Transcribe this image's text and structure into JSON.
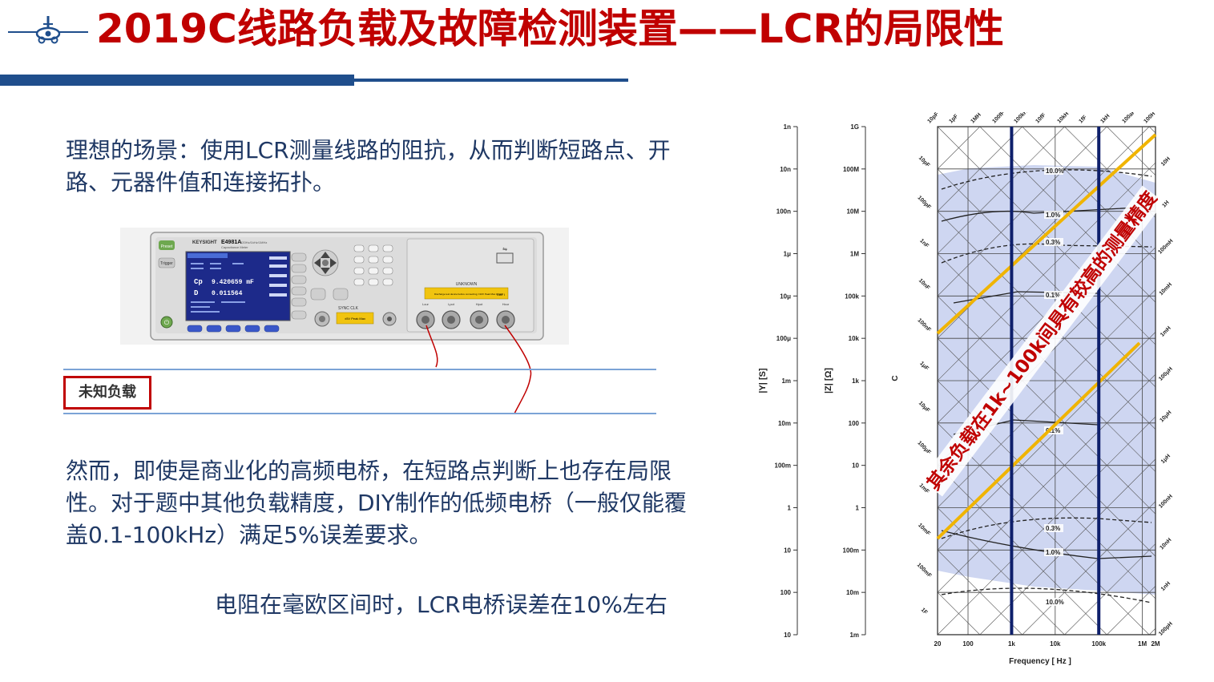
{
  "slide": {
    "title": "2019C线路负载及故障检测装置——LCR的局限性",
    "para1": "理想的场景：使用LCR测量线路的阻抗，从而判断短路点、开路、元器件值和连接拓扑。",
    "tag": "未知负载",
    "para2": "然而，即使是商业化的高频电桥，在短路点判断上也存在局限性。对于题中其他负载精度，DIY制作的低频电桥（一般仅能覆盖0.1-100kHz）满足5%误差要求。",
    "para3": "电阻在毫欧区间时，LCR电桥误差在10%左右"
  },
  "device": {
    "brand": "KEYSIGHT",
    "model": "E4981A",
    "model_sub": "120Hz/1kHz/1MHz",
    "model_sub2": "Capacitance Meter",
    "screen_cp_label": "Cp",
    "screen_cp_value": "9.420659 mF",
    "screen_d_label": "D",
    "screen_d_value": "0.011564",
    "sync_label": "SYNC CLK",
    "unknown_label": "UNKNOWN",
    "warning_text": "Discharge test device before connecting; ±10V Peak Max Output",
    "cat_label": "CAT I",
    "warning2": "±5V Peak Max",
    "port_labels": [
      "Lcur",
      "Lpot",
      "Hpot",
      "Hcur"
    ],
    "preset_label": "Preset",
    "trigger_label": "Trigger"
  },
  "chart_data": {
    "type": "line",
    "title": "",
    "xlabel": "Frequency [ Hz ]",
    "x_ticks": [
      "20",
      "100",
      "1k",
      "10k",
      "100k",
      "1M",
      "2M"
    ],
    "y_label_Y": "|Y| [S]",
    "y_label_Z": "|Z| [Ω]",
    "y_label_C": "C",
    "Y_ticks": [
      "1n",
      "10n",
      "100n",
      "1μ",
      "10μ",
      "100μ",
      "1m",
      "10m",
      "100m",
      "1",
      "10",
      "100",
      "10"
    ],
    "Z_ticks": [
      "1G",
      "100M",
      "10M",
      "1M",
      "100k",
      "10k",
      "1k",
      "100",
      "10",
      "1",
      "100m",
      "10m",
      "1m"
    ],
    "cap_labels": [
      "10pF",
      "100pF",
      "1nF",
      "10nF",
      "100nF",
      "1μF",
      "10μF",
      "100μF",
      "1mF",
      "10mF",
      "100mF",
      "1F"
    ],
    "top_labels": [
      "10pF",
      "1pF",
      "1MH",
      "100fF",
      "100kH",
      "10fF",
      "10kH",
      "1fF",
      "1kH",
      "100aF",
      "100H"
    ],
    "right_labels": [
      "10H",
      "1H",
      "100mH",
      "10mH",
      "1mH",
      "100μH",
      "10μH",
      "1μH",
      "100nH",
      "10nH",
      "1nH",
      "100pH"
    ],
    "accuracy_labels": [
      "10.0%",
      "1.0%",
      "0.3%",
      "0.1%",
      "0.1%",
      "0.3%",
      "1.0%",
      "10.0%"
    ],
    "vertical_markers_x": [
      "1k",
      "100k"
    ],
    "annotation": "其余负载在1k~100k间具有较高的测量精度"
  }
}
